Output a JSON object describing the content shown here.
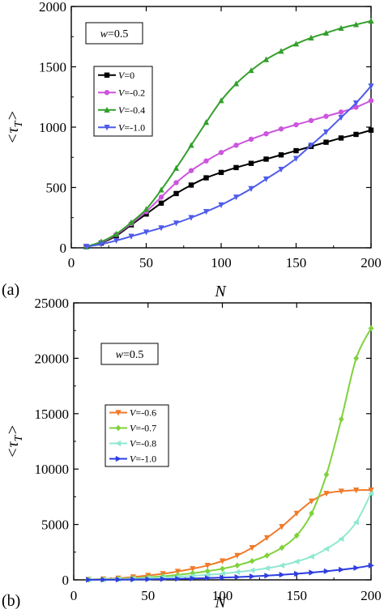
{
  "chart_data": [
    {
      "type": "line",
      "panel_label": "(a)",
      "xlabel": "N",
      "ylabel": "<τ_T>",
      "xlim": [
        0,
        200
      ],
      "ylim": [
        0,
        2000
      ],
      "xticks": [
        0,
        50,
        100,
        150,
        200
      ],
      "yticks": [
        0,
        500,
        1000,
        1500,
        2000
      ],
      "annotation": "w=0.5",
      "legend_position": "middle-left",
      "grid": false,
      "series": [
        {
          "name": "V=0",
          "color": "#000000",
          "marker": "square",
          "x": [
            10,
            20,
            30,
            40,
            50,
            60,
            70,
            80,
            90,
            100,
            110,
            120,
            130,
            140,
            150,
            160,
            170,
            180,
            190,
            200
          ],
          "y": [
            10,
            40,
            100,
            190,
            280,
            370,
            450,
            520,
            580,
            625,
            665,
            700,
            735,
            770,
            805,
            840,
            875,
            910,
            940,
            975
          ]
        },
        {
          "name": "V=-0.2",
          "color": "#cc55dd",
          "marker": "circle",
          "x": [
            10,
            20,
            30,
            40,
            50,
            60,
            70,
            80,
            90,
            100,
            110,
            120,
            130,
            140,
            150,
            160,
            170,
            180,
            190,
            200
          ],
          "y": [
            10,
            45,
            110,
            200,
            300,
            420,
            540,
            640,
            720,
            790,
            850,
            900,
            945,
            985,
            1020,
            1055,
            1090,
            1125,
            1165,
            1220
          ]
        },
        {
          "name": "V=-0.4",
          "color": "#33a02c",
          "marker": "triangle-up",
          "x": [
            10,
            20,
            30,
            40,
            50,
            60,
            70,
            80,
            90,
            100,
            110,
            120,
            130,
            140,
            150,
            160,
            170,
            180,
            190,
            200
          ],
          "y": [
            10,
            50,
            115,
            210,
            320,
            480,
            660,
            850,
            1040,
            1220,
            1360,
            1470,
            1560,
            1630,
            1690,
            1740,
            1780,
            1820,
            1850,
            1880
          ]
        },
        {
          "name": "V=-1.0",
          "color": "#4f5ce8",
          "marker": "triangle-down",
          "x": [
            10,
            20,
            30,
            40,
            50,
            60,
            70,
            80,
            90,
            100,
            110,
            120,
            130,
            140,
            150,
            160,
            170,
            180,
            190,
            200
          ],
          "y": [
            10,
            30,
            60,
            95,
            130,
            165,
            205,
            250,
            300,
            355,
            420,
            490,
            570,
            650,
            740,
            850,
            960,
            1080,
            1200,
            1340
          ]
        }
      ]
    },
    {
      "type": "line",
      "panel_label": "(b)",
      "xlabel": "N",
      "ylabel": "<τ_T>",
      "xlim": [
        0,
        200
      ],
      "ylim": [
        0,
        25000
      ],
      "xticks": [
        0,
        50,
        100,
        150,
        200
      ],
      "yticks": [
        0,
        5000,
        10000,
        15000,
        20000,
        25000
      ],
      "annotation": "w=0.5",
      "legend_position": "middle-left",
      "grid": false,
      "series": [
        {
          "name": "V=-0.6",
          "color": "#f07a2a",
          "marker": "triangle-down",
          "x": [
            10,
            20,
            30,
            40,
            50,
            60,
            70,
            80,
            90,
            100,
            110,
            120,
            130,
            140,
            150,
            160,
            170,
            180,
            190,
            200
          ],
          "y": [
            30,
            80,
            150,
            260,
            400,
            550,
            760,
            1000,
            1300,
            1700,
            2200,
            2900,
            3800,
            4800,
            6000,
            7100,
            7800,
            8000,
            8100,
            8100
          ]
        },
        {
          "name": "V=-0.7",
          "color": "#7fd23a",
          "marker": "diamond",
          "x": [
            10,
            20,
            30,
            40,
            50,
            60,
            70,
            80,
            90,
            100,
            110,
            120,
            130,
            140,
            150,
            160,
            170,
            180,
            190,
            200
          ],
          "y": [
            20,
            50,
            90,
            150,
            230,
            330,
            450,
            600,
            790,
            1000,
            1300,
            1700,
            2200,
            2900,
            4000,
            6000,
            9500,
            14500,
            20000,
            22700
          ]
        },
        {
          "name": "V=-0.8",
          "color": "#8fe8d0",
          "marker": "triangle-left",
          "x": [
            10,
            20,
            30,
            40,
            50,
            60,
            70,
            80,
            90,
            100,
            110,
            120,
            130,
            140,
            150,
            160,
            170,
            180,
            190,
            200
          ],
          "y": [
            15,
            35,
            60,
            100,
            150,
            210,
            280,
            360,
            450,
            560,
            700,
            860,
            1050,
            1300,
            1650,
            2100,
            2800,
            3700,
            5200,
            7800
          ]
        },
        {
          "name": "V=-1.0",
          "color": "#2e3ee0",
          "marker": "triangle-right",
          "x": [
            10,
            20,
            30,
            40,
            50,
            60,
            70,
            80,
            90,
            100,
            110,
            120,
            130,
            140,
            150,
            160,
            170,
            180,
            190,
            200
          ],
          "y": [
            5,
            12,
            22,
            35,
            50,
            70,
            95,
            125,
            160,
            200,
            250,
            310,
            380,
            460,
            550,
            660,
            780,
            920,
            1080,
            1300
          ]
        }
      ]
    }
  ]
}
